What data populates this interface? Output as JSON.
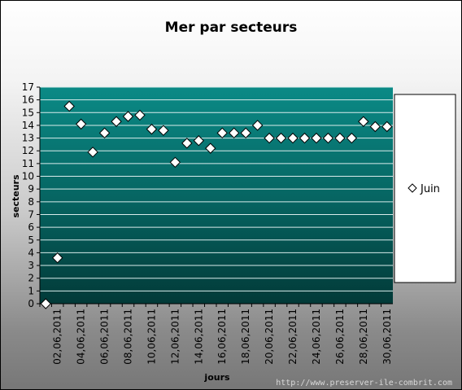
{
  "chart_data": {
    "type": "scatter",
    "title": "Mer par secteurs",
    "xlabel": "jours",
    "ylabel": "secteurs",
    "ylim": [
      0,
      17
    ],
    "yticks": [
      0,
      1,
      2,
      3,
      4,
      5,
      6,
      7,
      8,
      9,
      10,
      11,
      12,
      13,
      14,
      15,
      16,
      17
    ],
    "xlim": [
      "01,06,2011",
      "30,06,2011"
    ],
    "x_tick_labels": [
      "02,06,2011",
      "04,06,2011",
      "06,06,2011",
      "08,06,2011",
      "10,06,2011",
      "12,06,2011",
      "14,06,2011",
      "16,06,2011",
      "18,06,2011",
      "20,06,2011",
      "22,06,2011",
      "24,06,2011",
      "26,06,2011",
      "28,06,2011",
      "30,06,2011"
    ],
    "series": [
      {
        "name": "Juin",
        "marker": "diamond",
        "x": [
          "01,06,2011",
          "02,06,2011",
          "03,06,2011",
          "04,06,2011",
          "05,06,2011",
          "06,06,2011",
          "07,06,2011",
          "08,06,2011",
          "09,06,2011",
          "10,06,2011",
          "11,06,2011",
          "12,06,2011",
          "13,06,2011",
          "14,06,2011",
          "15,06,2011",
          "16,06,2011",
          "17,06,2011",
          "18,06,2011",
          "19,06,2011",
          "20,06,2011",
          "21,06,2011",
          "22,06,2011",
          "23,06,2011",
          "24,06,2011",
          "25,06,2011",
          "26,06,2011",
          "27,06,2011",
          "28,06,2011",
          "29,06,2011",
          "30,06,2011"
        ],
        "values": [
          0,
          3.6,
          15.5,
          14.1,
          11.9,
          13.4,
          14.3,
          14.7,
          14.8,
          13.7,
          13.6,
          11.1,
          12.6,
          12.8,
          12.2,
          13.4,
          13.4,
          13.4,
          14.0,
          13.0,
          13.0,
          13.0,
          13.0,
          13.0,
          13.0,
          13.0,
          13.0,
          14.3,
          13.9,
          13.9
        ]
      }
    ],
    "grid": true,
    "legend": "right"
  },
  "watermark": "http://www.preserver-ile-combrit.com"
}
